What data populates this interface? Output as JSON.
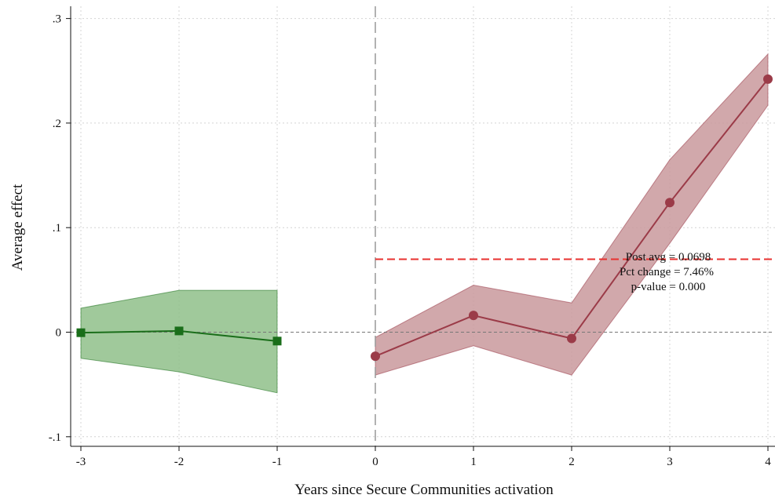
{
  "chart_data": {
    "type": "line",
    "title": "",
    "xlabel": "Years since Secure Communities activation",
    "ylabel": "Average effect",
    "xlim": [
      -3.1,
      4.0
    ],
    "ylim": [
      -0.11,
      0.31
    ],
    "x_ticks": [
      -3,
      -2,
      -1,
      0,
      1,
      2,
      3,
      4
    ],
    "x_tick_labels": [
      "-3",
      "-2",
      "-1",
      "0",
      "1",
      "2",
      "3",
      "4"
    ],
    "y_ticks": [
      -0.1,
      0,
      0.1,
      0.2,
      0.3
    ],
    "y_tick_labels": [
      "-.1",
      "0",
      ".1",
      ".2",
      ".3"
    ],
    "grid": true,
    "series": [
      {
        "marker": "square",
        "color": "#1a6e1a",
        "band_fill": "#8fbf8a",
        "x": [
          -3,
          -2,
          -1
        ],
        "values": [
          -0.0005,
          0.0012,
          -0.0085
        ],
        "ci_lower": [
          -0.025,
          -0.038,
          -0.058
        ],
        "ci_upper": [
          0.023,
          0.04,
          0.04
        ]
      },
      {
        "marker": "circle",
        "color": "#9b3b48",
        "band_fill": "#c9999c",
        "x": [
          0,
          1,
          2,
          3,
          4
        ],
        "values": [
          -0.023,
          0.016,
          -0.006,
          0.124,
          0.242
        ],
        "ci_lower": [
          -0.041,
          -0.013,
          -0.041,
          0.085,
          0.217
        ],
        "ci_upper": [
          -0.005,
          0.045,
          0.028,
          0.165,
          0.266
        ]
      }
    ],
    "reference_lines": [
      {
        "orientation": "horizontal",
        "value": 0,
        "style": "dashed",
        "color": "#777777"
      },
      {
        "orientation": "vertical",
        "value": 0,
        "style": "dashed",
        "color": "#999999"
      },
      {
        "orientation": "horizontal",
        "value": 0.0698,
        "from_x": 0,
        "style": "dashed",
        "color": "#e8312f"
      }
    ],
    "annotations": [
      "Post avg = 0.0698",
      "Pct change = 7.46%",
      "p-value = 0.000"
    ]
  }
}
